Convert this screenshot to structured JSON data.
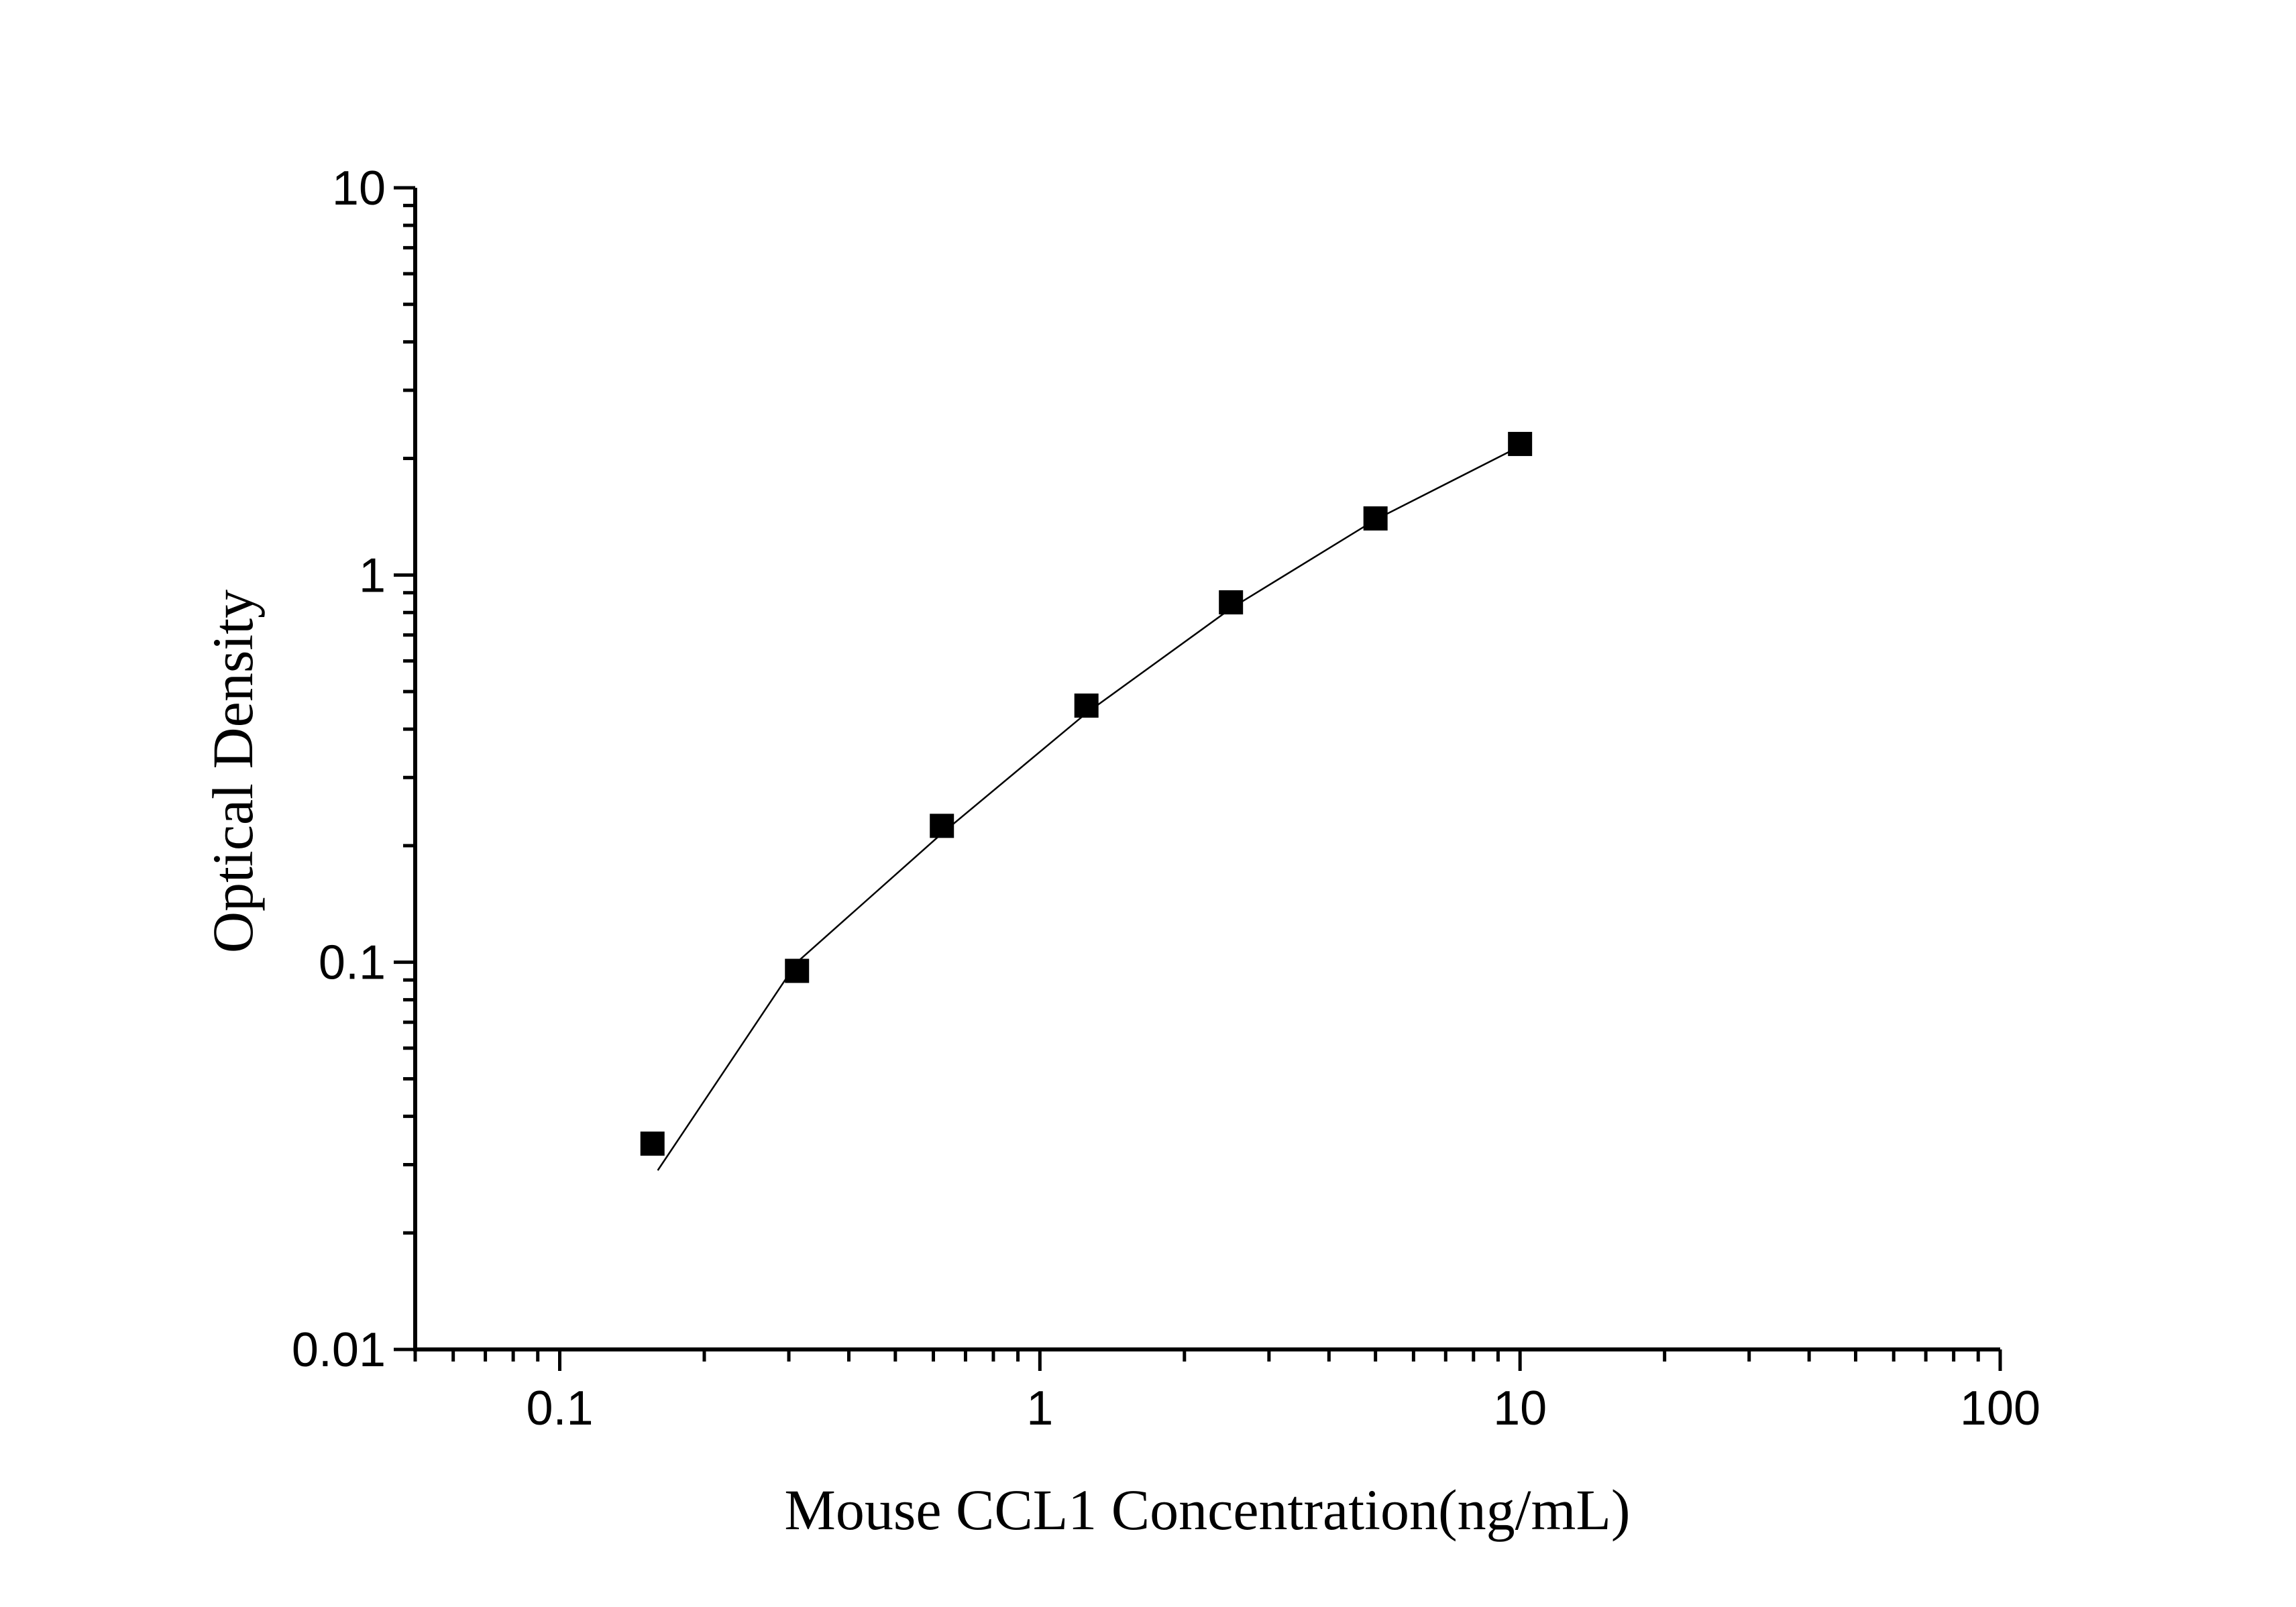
{
  "chart_data": {
    "type": "scatter",
    "title": "",
    "xlabel": "Mouse CCL1 Concentration(ng/mL)",
    "ylabel": "Optical Density",
    "x_scale": "log",
    "y_scale": "log",
    "xlim": [
      0.05,
      100
    ],
    "ylim": [
      0.01,
      10
    ],
    "x_tick_labels": [
      "0.1",
      "1",
      "10",
      "100"
    ],
    "y_tick_labels": [
      "0.01",
      "0.1",
      "1",
      "10"
    ],
    "grid": false,
    "legend": "none",
    "marker": "filled-square",
    "marker_color": "#000000",
    "line_color": "#000000",
    "series": [
      {
        "x": [
          0.156,
          0.312,
          0.625,
          1.25,
          2.5,
          5,
          10
        ],
        "y": [
          0.034,
          0.095,
          0.225,
          0.46,
          0.85,
          1.4,
          2.18
        ]
      }
    ],
    "fit_curve": {
      "x": [
        0.16,
        0.312,
        0.625,
        1.25,
        2.5,
        5,
        10
      ],
      "y": [
        0.029,
        0.1,
        0.215,
        0.44,
        0.82,
        1.39,
        2.15
      ]
    }
  }
}
